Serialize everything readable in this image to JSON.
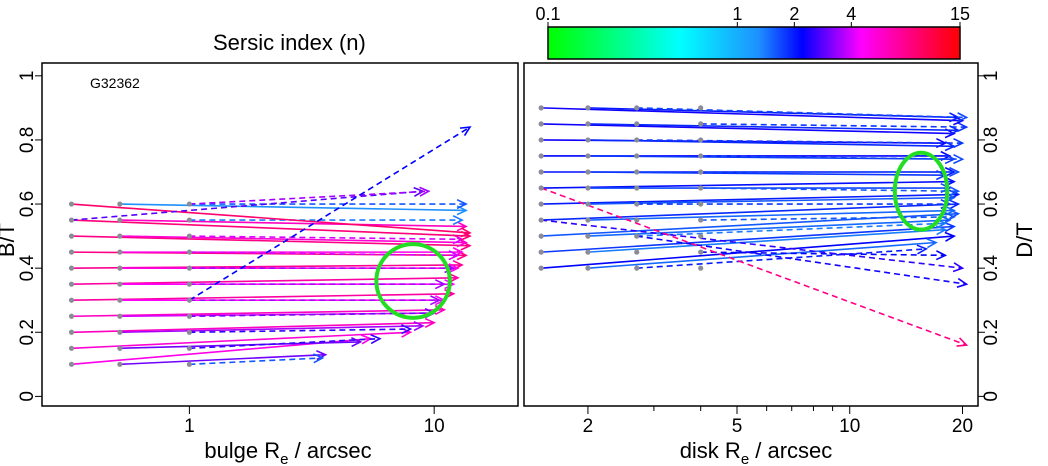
{
  "colorbar": {
    "title": "Sersic index (n)",
    "tick_labels": [
      "0.1",
      "1",
      "2",
      "4",
      "15"
    ],
    "tick_values": [
      0.1,
      1,
      2,
      4,
      15
    ],
    "stops": [
      {
        "n": 0.1,
        "color": "#00ff00"
      },
      {
        "n": 0.5,
        "color": "#00ffff"
      },
      {
        "n": 1.3,
        "color": "#1e90ff"
      },
      {
        "n": 2.2,
        "color": "#0000ff"
      },
      {
        "n": 4.5,
        "color": "#ff00ff"
      },
      {
        "n": 15,
        "color": "#ff0000"
      }
    ]
  },
  "highlight_color": "#22dd22",
  "chart_data": [
    {
      "type": "scatter",
      "panel": "left",
      "annotation": "G32362",
      "xlabel_main": "bulge R",
      "xlabel_sub": "e",
      "xlabel_rest": " / arcsec",
      "ylabel": "B/T",
      "xscale": "log",
      "xlim": [
        0.25,
        22
      ],
      "ylim": [
        -0.03,
        1.04
      ],
      "xticks": [
        1,
        10
      ],
      "xtick_labels": [
        "1",
        "10"
      ],
      "yticks": [
        0,
        0.2,
        0.4,
        0.6,
        0.8,
        1
      ],
      "ytick_labels": [
        "0",
        "0.2",
        "0.4",
        "0.6",
        "0.8",
        "1"
      ],
      "y_axis_side": "left",
      "start_x": [
        0.33,
        0.52,
        1.0
      ],
      "starts_y": [
        0.1,
        0.15,
        0.2,
        0.25,
        0.3,
        0.35,
        0.4,
        0.45,
        0.5,
        0.55,
        0.6
      ],
      "highlight_ellipse": {
        "x": 8.2,
        "y": 0.36,
        "rx_dex": 0.15,
        "ry": 0.115
      },
      "arrows": [
        {
          "x0": 0.33,
          "y0": 0.1,
          "x1": 5.5,
          "y1": 0.18,
          "n": 5,
          "dashed": false
        },
        {
          "x0": 0.52,
          "y0": 0.1,
          "x1": 3.6,
          "y1": 0.13,
          "n": 3,
          "dashed": false
        },
        {
          "x0": 1.0,
          "y0": 0.1,
          "x1": 3.5,
          "y1": 0.12,
          "n": 1.6,
          "dashed": true
        },
        {
          "x0": 0.33,
          "y0": 0.15,
          "x1": 8.0,
          "y1": 0.2,
          "n": 5.5,
          "dashed": false
        },
        {
          "x0": 0.52,
          "y0": 0.15,
          "x1": 5.0,
          "y1": 0.17,
          "n": 3,
          "dashed": false
        },
        {
          "x0": 1.0,
          "y0": 0.15,
          "x1": 6.0,
          "y1": 0.18,
          "n": 2.5,
          "dashed": true
        },
        {
          "x0": 0.33,
          "y0": 0.2,
          "x1": 10.0,
          "y1": 0.23,
          "n": 6,
          "dashed": false
        },
        {
          "x0": 0.52,
          "y0": 0.2,
          "x1": 9.0,
          "y1": 0.22,
          "n": 3.5,
          "dashed": false
        },
        {
          "x0": 1.0,
          "y0": 0.2,
          "x1": 8.0,
          "y1": 0.21,
          "n": 2.5,
          "dashed": true
        },
        {
          "x0": 0.33,
          "y0": 0.25,
          "x1": 11.0,
          "y1": 0.27,
          "n": 6,
          "dashed": false
        },
        {
          "x0": 0.52,
          "y0": 0.25,
          "x1": 10.0,
          "y1": 0.26,
          "n": 4,
          "dashed": false
        },
        {
          "x0": 1.0,
          "y0": 0.25,
          "x1": 10.0,
          "y1": 0.26,
          "n": 3,
          "dashed": true
        },
        {
          "x0": 0.33,
          "y0": 0.3,
          "x1": 12.0,
          "y1": 0.32,
          "n": 7,
          "dashed": false
        },
        {
          "x0": 0.52,
          "y0": 0.3,
          "x1": 11.0,
          "y1": 0.3,
          "n": 4.5,
          "dashed": false
        },
        {
          "x0": 1.0,
          "y0": 0.3,
          "x1": 10.5,
          "y1": 0.3,
          "n": 3.5,
          "dashed": true
        },
        {
          "x0": 0.33,
          "y0": 0.35,
          "x1": 12.5,
          "y1": 0.37,
          "n": 7,
          "dashed": false
        },
        {
          "x0": 0.52,
          "y0": 0.35,
          "x1": 12.0,
          "y1": 0.35,
          "n": 4.5,
          "dashed": false
        },
        {
          "x0": 1.0,
          "y0": 0.35,
          "x1": 11.0,
          "y1": 0.35,
          "n": 3.5,
          "dashed": true
        },
        {
          "x0": 0.33,
          "y0": 0.4,
          "x1": 13.0,
          "y1": 0.41,
          "n": 7.5,
          "dashed": false
        },
        {
          "x0": 0.52,
          "y0": 0.4,
          "x1": 12.5,
          "y1": 0.4,
          "n": 5,
          "dashed": false
        },
        {
          "x0": 1.0,
          "y0": 0.4,
          "x1": 12.0,
          "y1": 0.4,
          "n": 3.5,
          "dashed": true
        },
        {
          "x0": 0.33,
          "y0": 0.45,
          "x1": 13.5,
          "y1": 0.44,
          "n": 8,
          "dashed": false
        },
        {
          "x0": 0.52,
          "y0": 0.45,
          "x1": 13.0,
          "y1": 0.45,
          "n": 5,
          "dashed": false
        },
        {
          "x0": 1.0,
          "y0": 0.45,
          "x1": 12.5,
          "y1": 0.44,
          "n": 4,
          "dashed": true
        },
        {
          "x0": 0.33,
          "y0": 0.5,
          "x1": 14.0,
          "y1": 0.47,
          "n": 8,
          "dashed": false
        },
        {
          "x0": 0.52,
          "y0": 0.5,
          "x1": 13.5,
          "y1": 0.48,
          "n": 5.5,
          "dashed": false
        },
        {
          "x0": 1.0,
          "y0": 0.5,
          "x1": 13.0,
          "y1": 0.49,
          "n": 4,
          "dashed": true
        },
        {
          "x0": 0.33,
          "y0": 0.55,
          "x1": 14.0,
          "y1": 0.5,
          "n": 8.5,
          "dashed": false
        },
        {
          "x0": 0.52,
          "y0": 0.55,
          "x1": 13.5,
          "y1": 0.53,
          "n": 6,
          "dashed": false
        },
        {
          "x0": 1.0,
          "y0": 0.55,
          "x1": 13.0,
          "y1": 0.55,
          "n": 1.4,
          "dashed": true
        },
        {
          "x0": 0.33,
          "y0": 0.6,
          "x1": 14.0,
          "y1": 0.51,
          "n": 9,
          "dashed": false
        },
        {
          "x0": 0.52,
          "y0": 0.6,
          "x1": 13.5,
          "y1": 0.58,
          "n": 1.3,
          "dashed": false
        },
        {
          "x0": 1.0,
          "y0": 0.6,
          "x1": 13.5,
          "y1": 0.6,
          "n": 1.6,
          "dashed": true
        },
        {
          "x0": 0.33,
          "y0": 0.55,
          "x1": 9.0,
          "y1": 0.64,
          "n": 2.8,
          "dashed": true
        },
        {
          "x0": 1.0,
          "y0": 0.6,
          "x1": 9.5,
          "y1": 0.64,
          "n": 3.5,
          "dashed": true
        },
        {
          "x0": 1.0,
          "y0": 0.3,
          "x1": 14.0,
          "y1": 0.84,
          "n": 2.2,
          "dashed": true
        }
      ]
    },
    {
      "type": "scatter",
      "panel": "right",
      "annotation": "",
      "xlabel_main": "disk R",
      "xlabel_sub": "e",
      "xlabel_rest": " / arcsec",
      "ylabel": "D/T",
      "xscale": "log",
      "xlim": [
        1.35,
        22
      ],
      "ylim": [
        -0.03,
        1.04
      ],
      "xticks": [
        2,
        3,
        4,
        5,
        6,
        7,
        8,
        9,
        10,
        20
      ],
      "xtick_labels": [
        "2",
        "",
        "",
        "5",
        "",
        "",
        "",
        "",
        "10",
        "20"
      ],
      "yticks": [
        0,
        0.2,
        0.4,
        0.6,
        0.8,
        1
      ],
      "ytick_labels": [
        "0",
        "0.2",
        "0.4",
        "0.6",
        "0.8",
        "1"
      ],
      "y_axis_side": "right",
      "start_x": [
        1.5,
        2.0,
        2.7,
        4.0
      ],
      "starts_y": [
        0.4,
        0.45,
        0.5,
        0.55,
        0.6,
        0.65,
        0.7,
        0.75,
        0.8,
        0.85,
        0.9
      ],
      "highlight_ellipse": {
        "x": 15.5,
        "y": 0.64,
        "rx_dex": 0.07,
        "ry": 0.12
      },
      "arrows": [
        {
          "x0": 1.5,
          "y0": 0.4,
          "x1": 19.0,
          "y1": 0.5,
          "n": 2.2,
          "dashed": false
        },
        {
          "x0": 2.0,
          "y0": 0.4,
          "x1": 17.0,
          "y1": 0.48,
          "n": 1.5,
          "dashed": false
        },
        {
          "x0": 2.7,
          "y0": 0.4,
          "x1": 16.0,
          "y1": 0.46,
          "n": 2,
          "dashed": true
        },
        {
          "x0": 1.5,
          "y0": 0.45,
          "x1": 19.0,
          "y1": 0.53,
          "n": 1.8,
          "dashed": false
        },
        {
          "x0": 2.0,
          "y0": 0.45,
          "x1": 18.0,
          "y1": 0.52,
          "n": 1.4,
          "dashed": false
        },
        {
          "x0": 4.0,
          "y0": 0.45,
          "x1": 18.0,
          "y1": 0.44,
          "n": 2.2,
          "dashed": true
        },
        {
          "x0": 1.5,
          "y0": 0.5,
          "x1": 19.5,
          "y1": 0.57,
          "n": 1.6,
          "dashed": false
        },
        {
          "x0": 2.0,
          "y0": 0.5,
          "x1": 18.5,
          "y1": 0.55,
          "n": 1.5,
          "dashed": false
        },
        {
          "x0": 2.7,
          "y0": 0.5,
          "x1": 18.0,
          "y1": 0.54,
          "n": 1.4,
          "dashed": true
        },
        {
          "x0": 1.5,
          "y0": 0.55,
          "x1": 19.5,
          "y1": 0.6,
          "n": 1.9,
          "dashed": false
        },
        {
          "x0": 2.0,
          "y0": 0.55,
          "x1": 19.0,
          "y1": 0.58,
          "n": 1.5,
          "dashed": false
        },
        {
          "x0": 4.0,
          "y0": 0.55,
          "x1": 19.0,
          "y1": 0.56,
          "n": 1.6,
          "dashed": true
        },
        {
          "x0": 1.5,
          "y0": 0.6,
          "x1": 19.5,
          "y1": 0.63,
          "n": 2,
          "dashed": false
        },
        {
          "x0": 2.0,
          "y0": 0.6,
          "x1": 19.0,
          "y1": 0.62,
          "n": 1.6,
          "dashed": false
        },
        {
          "x0": 2.7,
          "y0": 0.6,
          "x1": 18.5,
          "y1": 0.6,
          "n": 1.8,
          "dashed": true
        },
        {
          "x0": 1.5,
          "y0": 0.65,
          "x1": 19.0,
          "y1": 0.67,
          "n": 2.1,
          "dashed": false
        },
        {
          "x0": 2.0,
          "y0": 0.65,
          "x1": 18.5,
          "y1": 0.65,
          "n": 1.7,
          "dashed": false
        },
        {
          "x0": 4.0,
          "y0": 0.65,
          "x1": 19.5,
          "y1": 0.64,
          "n": 1.6,
          "dashed": true
        },
        {
          "x0": 1.5,
          "y0": 0.7,
          "x1": 19.0,
          "y1": 0.7,
          "n": 2.1,
          "dashed": false
        },
        {
          "x0": 2.0,
          "y0": 0.7,
          "x1": 18.0,
          "y1": 0.69,
          "n": 1.8,
          "dashed": false
        },
        {
          "x0": 2.7,
          "y0": 0.7,
          "x1": 19.5,
          "y1": 0.7,
          "n": 1.7,
          "dashed": true
        },
        {
          "x0": 1.5,
          "y0": 0.75,
          "x1": 18.5,
          "y1": 0.75,
          "n": 2.2,
          "dashed": false
        },
        {
          "x0": 2.0,
          "y0": 0.75,
          "x1": 19.0,
          "y1": 0.74,
          "n": 1.8,
          "dashed": false
        },
        {
          "x0": 4.0,
          "y0": 0.75,
          "x1": 20.0,
          "y1": 0.74,
          "n": 1.7,
          "dashed": true
        },
        {
          "x0": 1.5,
          "y0": 0.8,
          "x1": 18.0,
          "y1": 0.79,
          "n": 2.3,
          "dashed": false
        },
        {
          "x0": 2.0,
          "y0": 0.8,
          "x1": 19.0,
          "y1": 0.78,
          "n": 1.9,
          "dashed": false
        },
        {
          "x0": 2.7,
          "y0": 0.8,
          "x1": 20.0,
          "y1": 0.79,
          "n": 1.8,
          "dashed": true
        },
        {
          "x0": 1.5,
          "y0": 0.85,
          "x1": 19.0,
          "y1": 0.82,
          "n": 2.3,
          "dashed": false
        },
        {
          "x0": 2.0,
          "y0": 0.85,
          "x1": 19.5,
          "y1": 0.83,
          "n": 1.9,
          "dashed": false
        },
        {
          "x0": 4.0,
          "y0": 0.85,
          "x1": 20.5,
          "y1": 0.84,
          "n": 1.8,
          "dashed": true
        },
        {
          "x0": 1.5,
          "y0": 0.9,
          "x1": 20.0,
          "y1": 0.86,
          "n": 2.3,
          "dashed": false
        },
        {
          "x0": 2.0,
          "y0": 0.9,
          "x1": 19.5,
          "y1": 0.87,
          "n": 2.0,
          "dashed": false
        },
        {
          "x0": 2.7,
          "y0": 0.9,
          "x1": 20.5,
          "y1": 0.87,
          "n": 1.7,
          "dashed": true
        },
        {
          "x0": 1.5,
          "y0": 0.55,
          "x1": 20.0,
          "y1": 0.4,
          "n": 2.5,
          "dashed": true
        },
        {
          "x0": 2.7,
          "y0": 0.5,
          "x1": 20.5,
          "y1": 0.35,
          "n": 2.3,
          "dashed": true
        },
        {
          "x0": 1.5,
          "y0": 0.65,
          "x1": 20.5,
          "y1": 0.16,
          "n": 8,
          "dashed": true
        }
      ]
    }
  ]
}
